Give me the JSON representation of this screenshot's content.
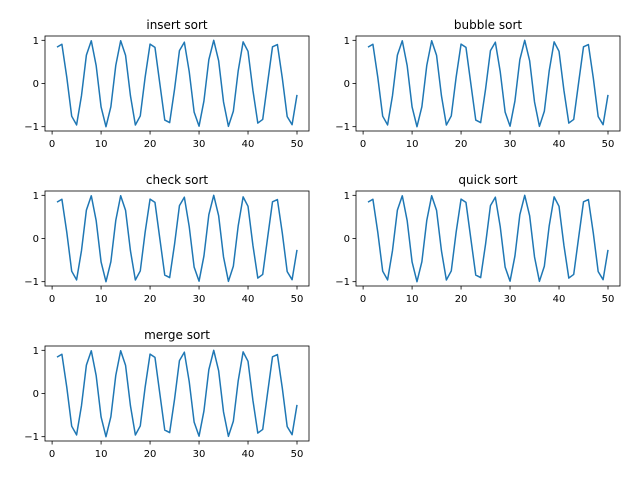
{
  "chart_data": [
    {
      "type": "line",
      "title": "insert sort",
      "xlabel": "",
      "ylabel": "",
      "x_start": 1,
      "x_end": 50,
      "function": "sin(x)",
      "xlim": [
        -1.45,
        52.45
      ],
      "ylim": [
        -1.1,
        1.1
      ],
      "xticks": [
        0,
        10,
        20,
        30,
        40,
        50
      ],
      "yticks": [
        -1,
        0,
        1
      ],
      "line_color": "#1f77b4",
      "grid": false
    },
    {
      "type": "line",
      "title": "bubble sort",
      "xlabel": "",
      "ylabel": "",
      "x_start": 1,
      "x_end": 50,
      "function": "sin(x)",
      "xlim": [
        -1.45,
        52.45
      ],
      "ylim": [
        -1.1,
        1.1
      ],
      "xticks": [
        0,
        10,
        20,
        30,
        40,
        50
      ],
      "yticks": [
        -1,
        0,
        1
      ],
      "line_color": "#1f77b4",
      "grid": false
    },
    {
      "type": "line",
      "title": "check sort",
      "xlabel": "",
      "ylabel": "",
      "x_start": 1,
      "x_end": 50,
      "function": "sin(x)",
      "xlim": [
        -1.45,
        52.45
      ],
      "ylim": [
        -1.1,
        1.1
      ],
      "xticks": [
        0,
        10,
        20,
        30,
        40,
        50
      ],
      "yticks": [
        -1,
        0,
        1
      ],
      "line_color": "#1f77b4",
      "grid": false
    },
    {
      "type": "line",
      "title": "quick sort",
      "xlabel": "",
      "ylabel": "",
      "x_start": 1,
      "x_end": 50,
      "function": "sin(x)",
      "xlim": [
        -1.45,
        52.45
      ],
      "ylim": [
        -1.1,
        1.1
      ],
      "xticks": [
        0,
        10,
        20,
        30,
        40,
        50
      ],
      "yticks": [
        -1,
        0,
        1
      ],
      "line_color": "#1f77b4",
      "grid": false
    },
    {
      "type": "line",
      "title": "merge sort",
      "xlabel": "",
      "ylabel": "",
      "x_start": 1,
      "x_end": 50,
      "function": "sin(x)",
      "xlim": [
        -1.45,
        52.45
      ],
      "ylim": [
        -1.1,
        1.1
      ],
      "xticks": [
        0,
        10,
        20,
        30,
        40,
        50
      ],
      "yticks": [
        -1,
        0,
        1
      ],
      "line_color": "#1f77b4",
      "grid": false
    }
  ]
}
